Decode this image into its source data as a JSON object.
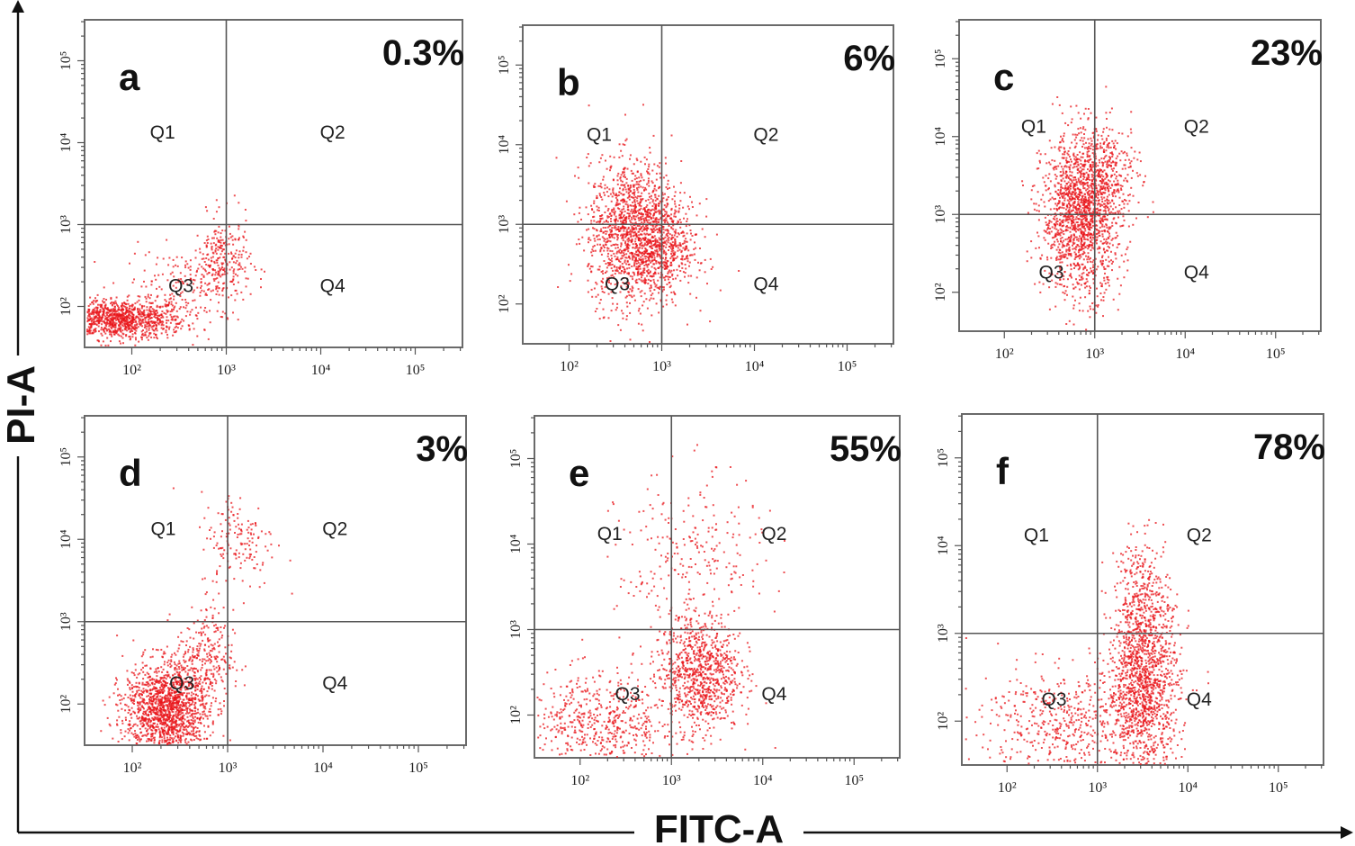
{
  "figure": {
    "y_axis_title": "PI-A",
    "x_axis_title": "FITC-A"
  },
  "chart_data": [
    {
      "type": "scatter",
      "panel": "a",
      "percent_label": "0.3%",
      "xlabel": "FITC-A",
      "ylabel": "PI-A",
      "xlim": [
        1.5,
        5.5
      ],
      "ylim": [
        1.5,
        5.5
      ],
      "x_ticks": [
        "10²",
        "10³",
        "10⁴",
        "10⁵"
      ],
      "y_ticks": [
        "10²",
        "10³",
        "10⁴",
        "10⁵"
      ],
      "quadrants": [
        "Q1",
        "Q2",
        "Q3",
        "Q4"
      ],
      "gate": {
        "x": 3.0,
        "y": 3.0
      },
      "point_color": "#e8141a",
      "clusters": [
        {
          "x": 1.85,
          "y": 1.85,
          "sx": 0.35,
          "sy": 0.12,
          "n": 1100
        },
        {
          "x": 2.95,
          "y": 2.55,
          "sx": 0.15,
          "sy": 0.28,
          "n": 260
        },
        {
          "x": 2.5,
          "y": 2.3,
          "sx": 0.3,
          "sy": 0.2,
          "n": 160
        }
      ]
    },
    {
      "type": "scatter",
      "panel": "b",
      "percent_label": "6%",
      "xlabel": "FITC-A",
      "ylabel": "PI-A",
      "xlim": [
        1.5,
        5.5
      ],
      "ylim": [
        1.5,
        5.5
      ],
      "x_ticks": [
        "10²",
        "10³",
        "10⁴",
        "10⁵"
      ],
      "y_ticks": [
        "10²",
        "10³",
        "10⁴",
        "10⁵"
      ],
      "quadrants": [
        "Q1",
        "Q2",
        "Q3",
        "Q4"
      ],
      "gate": {
        "x": 3.0,
        "y": 3.0
      },
      "point_color": "#e8141a",
      "clusters": [
        {
          "x": 2.7,
          "y": 2.9,
          "sx": 0.25,
          "sy": 0.45,
          "n": 1500
        },
        {
          "x": 3.05,
          "y": 2.7,
          "sx": 0.18,
          "sy": 0.3,
          "n": 300
        }
      ]
    },
    {
      "type": "scatter",
      "panel": "c",
      "percent_label": "23%",
      "xlabel": "FITC-A",
      "ylabel": "PI-A",
      "xlim": [
        1.5,
        5.5
      ],
      "ylim": [
        1.5,
        5.5
      ],
      "x_ticks": [
        "10²",
        "10³",
        "10⁴",
        "10⁵"
      ],
      "y_ticks": [
        "10²",
        "10³",
        "10⁴",
        "10⁵"
      ],
      "quadrants": [
        "Q1",
        "Q2",
        "Q3",
        "Q4"
      ],
      "gate": {
        "x": 3.0,
        "y": 3.0
      },
      "point_color": "#e8141a",
      "clusters": [
        {
          "x": 2.85,
          "y": 3.0,
          "sx": 0.22,
          "sy": 0.5,
          "n": 1600
        },
        {
          "x": 3.1,
          "y": 3.6,
          "sx": 0.2,
          "sy": 0.3,
          "n": 250
        }
      ]
    },
    {
      "type": "scatter",
      "panel": "d",
      "percent_label": "3%",
      "xlabel": "FITC-A",
      "ylabel": "PI-A",
      "xlim": [
        1.5,
        5.5
      ],
      "ylim": [
        1.5,
        5.5
      ],
      "x_ticks": [
        "10²",
        "10³",
        "10⁴",
        "10⁵"
      ],
      "y_ticks": [
        "10²",
        "10³",
        "10⁴",
        "10⁵"
      ],
      "quadrants": [
        "Q1",
        "Q2",
        "Q3",
        "Q4"
      ],
      "gate": {
        "x": 3.0,
        "y": 3.0
      },
      "point_color": "#e8141a",
      "clusters": [
        {
          "x": 2.35,
          "y": 1.95,
          "sx": 0.22,
          "sy": 0.28,
          "n": 1500
        },
        {
          "x": 2.75,
          "y": 2.55,
          "sx": 0.15,
          "sy": 0.3,
          "n": 260
        },
        {
          "x": 3.1,
          "y": 4.0,
          "sx": 0.2,
          "sy": 0.3,
          "n": 160
        }
      ]
    },
    {
      "type": "scatter",
      "panel": "e",
      "percent_label": "55%",
      "xlabel": "FITC-A",
      "ylabel": "PI-A",
      "xlim": [
        1.5,
        5.5
      ],
      "ylim": [
        1.5,
        5.5
      ],
      "x_ticks": [
        "10²",
        "10³",
        "10⁴",
        "10⁵"
      ],
      "y_ticks": [
        "10²",
        "10³",
        "10⁴",
        "10⁵"
      ],
      "quadrants": [
        "Q1",
        "Q2",
        "Q3",
        "Q4"
      ],
      "gate": {
        "x": 3.0,
        "y": 3.0
      },
      "point_color": "#e8141a",
      "clusters": [
        {
          "x": 3.3,
          "y": 2.5,
          "sx": 0.22,
          "sy": 0.35,
          "n": 900
        },
        {
          "x": 2.2,
          "y": 1.9,
          "sx": 0.45,
          "sy": 0.3,
          "n": 600
        },
        {
          "x": 3.2,
          "y": 3.8,
          "sx": 0.4,
          "sy": 0.5,
          "n": 250
        }
      ]
    },
    {
      "type": "scatter",
      "panel": "f",
      "percent_label": "78%",
      "xlabel": "FITC-A",
      "ylabel": "PI-A",
      "xlim": [
        1.5,
        5.5
      ],
      "ylim": [
        1.5,
        5.5
      ],
      "x_ticks": [
        "10²",
        "10³",
        "10⁴",
        "10⁵"
      ],
      "y_ticks": [
        "10²",
        "10³",
        "10⁴",
        "10⁵"
      ],
      "quadrants": [
        "Q1",
        "Q2",
        "Q3",
        "Q4"
      ],
      "gate": {
        "x": 3.0,
        "y": 3.0
      },
      "point_color": "#e8141a",
      "clusters": [
        {
          "x": 3.5,
          "y": 2.4,
          "sx": 0.2,
          "sy": 0.5,
          "n": 1300
        },
        {
          "x": 3.5,
          "y": 3.4,
          "sx": 0.15,
          "sy": 0.35,
          "n": 300
        },
        {
          "x": 2.6,
          "y": 2.0,
          "sx": 0.45,
          "sy": 0.3,
          "n": 500
        }
      ]
    }
  ]
}
